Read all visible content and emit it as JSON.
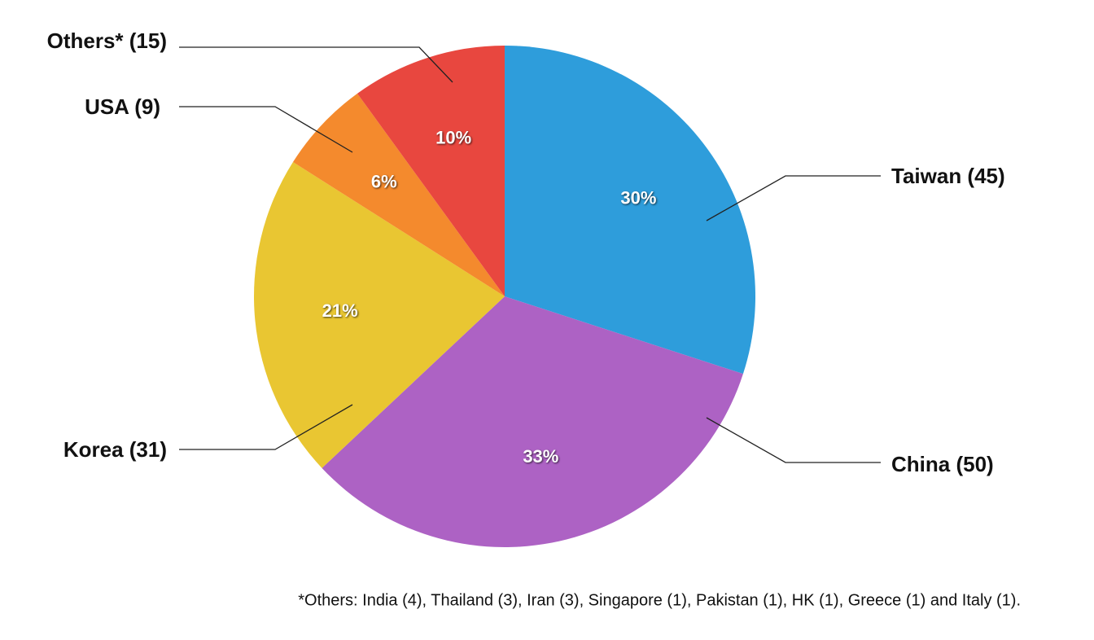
{
  "chart_data": {
    "type": "pie",
    "categories": [
      "Taiwan (45)",
      "China (50)",
      "Korea (31)",
      "USA (9)",
      "Others* (15)"
    ],
    "values": [
      30,
      33,
      21,
      6,
      10
    ],
    "value_labels": [
      "30%",
      "33%",
      "21%",
      "6%",
      "10%"
    ],
    "colors": [
      "#2e9ddb",
      "#ad62c4",
      "#e9c632",
      "#f48a2d",
      "#e8473f"
    ],
    "annotation": "*Others: India (4), Thailand (3), Iran (3), Singapore (1), Pakistan (1), HK (1), Greece (1) and Italy (1)."
  }
}
